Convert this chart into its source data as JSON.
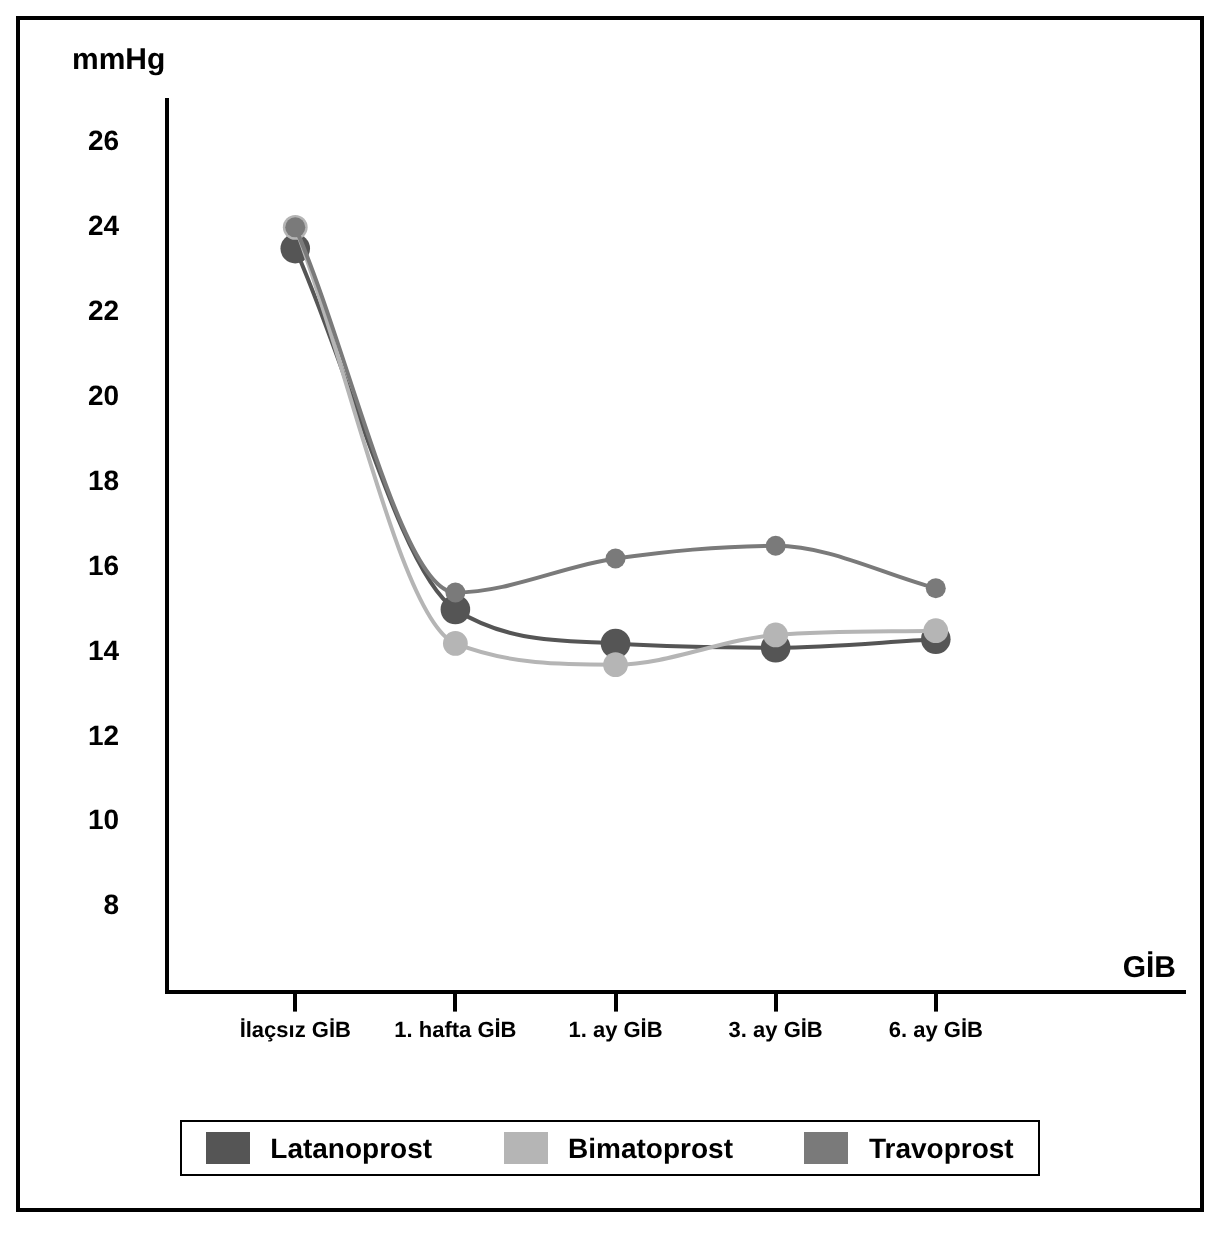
{
  "chart_data": {
    "type": "line",
    "xlabel": "GİB",
    "ylabel": "mmHg",
    "categories": [
      "İlaçsız GİB",
      "1. hafta GİB",
      "1. ay GİB",
      "3. ay GİB",
      "6. ay GİB"
    ],
    "series": [
      {
        "name": "Latanoprost",
        "color": "#555555",
        "values": [
          23.5,
          15.0,
          14.2,
          14.1,
          14.3
        ]
      },
      {
        "name": "Bimatoprost",
        "color": "#b5b5b5",
        "values": [
          24.0,
          14.2,
          13.7,
          14.4,
          14.5
        ]
      },
      {
        "name": "Travoprost",
        "color": "#7a7a7a",
        "values": [
          24.0,
          15.4,
          16.2,
          16.5,
          15.5
        ]
      }
    ],
    "ylim": [
      6,
      27
    ],
    "yticks": [
      8,
      10,
      12,
      14,
      16,
      18,
      20,
      22,
      24,
      26
    ],
    "grid": false,
    "legend": "bottom",
    "marker": "circle",
    "line_style": "solid"
  }
}
